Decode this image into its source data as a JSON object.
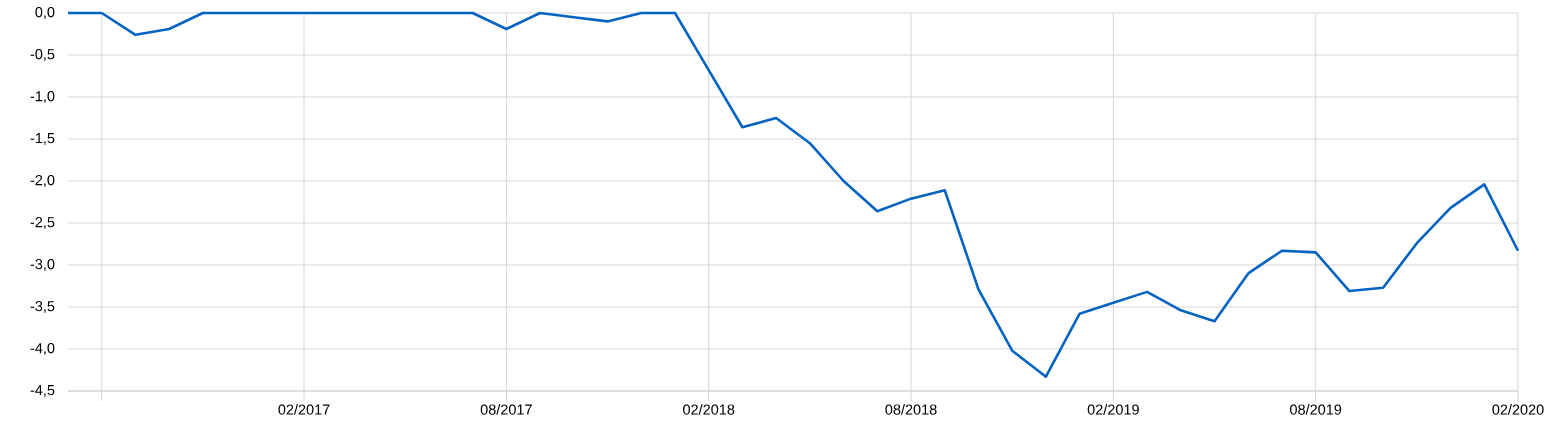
{
  "chart_data": {
    "type": "line",
    "color": "#0563c1",
    "x": [
      "2016-07",
      "2016-08",
      "2016-09",
      "2016-10",
      "2016-11",
      "2016-12",
      "2017-01",
      "2017-02",
      "2017-03",
      "2017-04",
      "2017-05",
      "2017-06",
      "2017-07",
      "2017-08",
      "2017-09",
      "2017-10",
      "2017-11",
      "2017-12",
      "2018-01",
      "2018-02",
      "2018-03",
      "2018-04",
      "2018-05",
      "2018-06",
      "2018-07",
      "2018-08",
      "2018-09",
      "2018-10",
      "2018-11",
      "2018-12",
      "2019-01",
      "2019-02",
      "2019-03",
      "2019-04",
      "2019-05",
      "2019-06",
      "2019-07",
      "2019-08",
      "2019-09",
      "2019-10",
      "2019-11",
      "2019-12",
      "2020-01",
      "2020-02"
    ],
    "values": [
      0,
      0,
      -0.26,
      -0.19,
      0,
      0,
      0,
      0,
      0,
      0,
      0,
      0,
      0,
      -0.19,
      0,
      -0.05,
      -0.1,
      0,
      0,
      -0.68,
      -1.36,
      -1.25,
      -1.55,
      -2.0,
      -2.36,
      -2.21,
      -2.11,
      -3.29,
      -4.02,
      -4.33,
      -3.58,
      -3.45,
      -3.32,
      -3.54,
      -3.67,
      -3.1,
      -2.83,
      -2.85,
      -3.31,
      -3.27,
      -2.74,
      -2.32,
      -2.04,
      -2.83
    ],
    "xlim": [
      "2016-07",
      "2020-02"
    ],
    "xticks": [
      {
        "value": "2016-08",
        "label": null
      },
      {
        "value": "2017-02",
        "label": "02/2017"
      },
      {
        "value": "2017-08",
        "label": "08/2017"
      },
      {
        "value": "2018-02",
        "label": "02/2018"
      },
      {
        "value": "2018-08",
        "label": "08/2018"
      },
      {
        "value": "2019-02",
        "label": "02/2019"
      },
      {
        "value": "2019-08",
        "label": "08/2019"
      },
      {
        "value": "2020-02",
        "label": "02/2020"
      }
    ],
    "ylim": [
      -4.5,
      0
    ],
    "yticks": [
      {
        "value": 0,
        "label": "0,0"
      },
      {
        "value": -0.5,
        "label": "-0,5"
      },
      {
        "value": -1,
        "label": "-1,0"
      },
      {
        "value": -1.5,
        "label": "-1,5"
      },
      {
        "value": -2,
        "label": "-2,0"
      },
      {
        "value": -2.5,
        "label": "-2,5"
      },
      {
        "value": -3,
        "label": "-3,0"
      },
      {
        "value": -3.5,
        "label": "-3,5"
      },
      {
        "value": -4,
        "label": "-4,0"
      },
      {
        "value": -4.5,
        "label": "-4,5"
      }
    ],
    "grid": true
  }
}
